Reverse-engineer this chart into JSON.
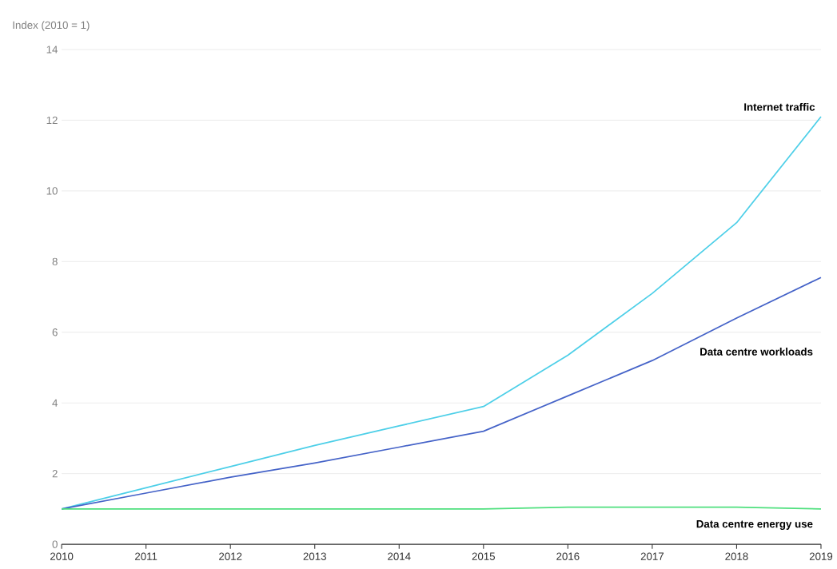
{
  "chart_data": {
    "type": "line",
    "ylabel": "Index (2010 = 1)",
    "x": [
      2010,
      2011,
      2012,
      2013,
      2014,
      2015,
      2016,
      2017,
      2018,
      2019
    ],
    "xlim": [
      2010,
      2019
    ],
    "xticks": [
      2010,
      2011,
      2012,
      2013,
      2014,
      2015,
      2016,
      2017,
      2018,
      2019
    ],
    "ylim": [
      0,
      14
    ],
    "yticks": [
      0,
      2,
      4,
      6,
      8,
      10,
      12,
      14
    ],
    "grid": "y",
    "series": [
      {
        "name": "Internet traffic",
        "color": "#4dcfe8",
        "values": [
          1.0,
          1.6,
          2.2,
          2.8,
          3.35,
          3.9,
          5.35,
          7.1,
          9.1,
          12.1
        ]
      },
      {
        "name": "Data centre workloads",
        "color": "#4563c8",
        "values": [
          1.0,
          1.45,
          1.9,
          2.3,
          2.75,
          3.2,
          4.2,
          5.2,
          6.4,
          7.55
        ]
      },
      {
        "name": "Data centre energy use",
        "color": "#4fe07e",
        "values": [
          1.0,
          1.0,
          1.0,
          1.0,
          1.0,
          1.0,
          1.05,
          1.05,
          1.05,
          1.0
        ]
      }
    ]
  }
}
